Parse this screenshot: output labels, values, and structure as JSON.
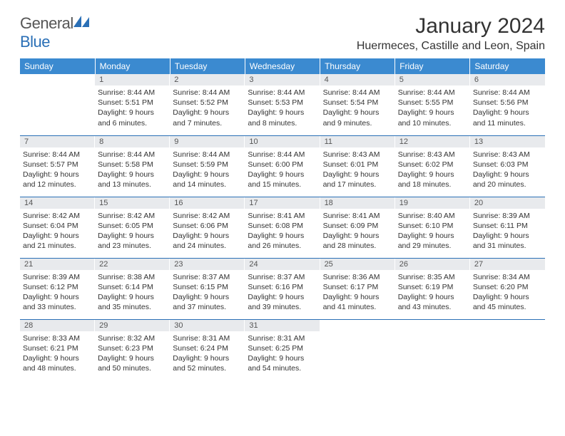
{
  "logo": {
    "text1": "General",
    "text2": "Blue"
  },
  "title": "January 2024",
  "location": "Huermeces, Castille and Leon, Spain",
  "colors": {
    "header_bg": "#3b8ad0",
    "header_text": "#ffffff",
    "daynum_bg": "#e8eaed",
    "rule": "#2a6fb6",
    "logo_accent": "#2a6fb6"
  },
  "weekdays": [
    "Sunday",
    "Monday",
    "Tuesday",
    "Wednesday",
    "Thursday",
    "Friday",
    "Saturday"
  ],
  "weeks": [
    [
      {
        "empty": true
      },
      {
        "n": "1",
        "sr": "8:44 AM",
        "ss": "5:51 PM",
        "dl": "9 hours and 6 minutes."
      },
      {
        "n": "2",
        "sr": "8:44 AM",
        "ss": "5:52 PM",
        "dl": "9 hours and 7 minutes."
      },
      {
        "n": "3",
        "sr": "8:44 AM",
        "ss": "5:53 PM",
        "dl": "9 hours and 8 minutes."
      },
      {
        "n": "4",
        "sr": "8:44 AM",
        "ss": "5:54 PM",
        "dl": "9 hours and 9 minutes."
      },
      {
        "n": "5",
        "sr": "8:44 AM",
        "ss": "5:55 PM",
        "dl": "9 hours and 10 minutes."
      },
      {
        "n": "6",
        "sr": "8:44 AM",
        "ss": "5:56 PM",
        "dl": "9 hours and 11 minutes."
      }
    ],
    [
      {
        "n": "7",
        "sr": "8:44 AM",
        "ss": "5:57 PM",
        "dl": "9 hours and 12 minutes."
      },
      {
        "n": "8",
        "sr": "8:44 AM",
        "ss": "5:58 PM",
        "dl": "9 hours and 13 minutes."
      },
      {
        "n": "9",
        "sr": "8:44 AM",
        "ss": "5:59 PM",
        "dl": "9 hours and 14 minutes."
      },
      {
        "n": "10",
        "sr": "8:44 AM",
        "ss": "6:00 PM",
        "dl": "9 hours and 15 minutes."
      },
      {
        "n": "11",
        "sr": "8:43 AM",
        "ss": "6:01 PM",
        "dl": "9 hours and 17 minutes."
      },
      {
        "n": "12",
        "sr": "8:43 AM",
        "ss": "6:02 PM",
        "dl": "9 hours and 18 minutes."
      },
      {
        "n": "13",
        "sr": "8:43 AM",
        "ss": "6:03 PM",
        "dl": "9 hours and 20 minutes."
      }
    ],
    [
      {
        "n": "14",
        "sr": "8:42 AM",
        "ss": "6:04 PM",
        "dl": "9 hours and 21 minutes."
      },
      {
        "n": "15",
        "sr": "8:42 AM",
        "ss": "6:05 PM",
        "dl": "9 hours and 23 minutes."
      },
      {
        "n": "16",
        "sr": "8:42 AM",
        "ss": "6:06 PM",
        "dl": "9 hours and 24 minutes."
      },
      {
        "n": "17",
        "sr": "8:41 AM",
        "ss": "6:08 PM",
        "dl": "9 hours and 26 minutes."
      },
      {
        "n": "18",
        "sr": "8:41 AM",
        "ss": "6:09 PM",
        "dl": "9 hours and 28 minutes."
      },
      {
        "n": "19",
        "sr": "8:40 AM",
        "ss": "6:10 PM",
        "dl": "9 hours and 29 minutes."
      },
      {
        "n": "20",
        "sr": "8:39 AM",
        "ss": "6:11 PM",
        "dl": "9 hours and 31 minutes."
      }
    ],
    [
      {
        "n": "21",
        "sr": "8:39 AM",
        "ss": "6:12 PM",
        "dl": "9 hours and 33 minutes."
      },
      {
        "n": "22",
        "sr": "8:38 AM",
        "ss": "6:14 PM",
        "dl": "9 hours and 35 minutes."
      },
      {
        "n": "23",
        "sr": "8:37 AM",
        "ss": "6:15 PM",
        "dl": "9 hours and 37 minutes."
      },
      {
        "n": "24",
        "sr": "8:37 AM",
        "ss": "6:16 PM",
        "dl": "9 hours and 39 minutes."
      },
      {
        "n": "25",
        "sr": "8:36 AM",
        "ss": "6:17 PM",
        "dl": "9 hours and 41 minutes."
      },
      {
        "n": "26",
        "sr": "8:35 AM",
        "ss": "6:19 PM",
        "dl": "9 hours and 43 minutes."
      },
      {
        "n": "27",
        "sr": "8:34 AM",
        "ss": "6:20 PM",
        "dl": "9 hours and 45 minutes."
      }
    ],
    [
      {
        "n": "28",
        "sr": "8:33 AM",
        "ss": "6:21 PM",
        "dl": "9 hours and 48 minutes."
      },
      {
        "n": "29",
        "sr": "8:32 AM",
        "ss": "6:23 PM",
        "dl": "9 hours and 50 minutes."
      },
      {
        "n": "30",
        "sr": "8:31 AM",
        "ss": "6:24 PM",
        "dl": "9 hours and 52 minutes."
      },
      {
        "n": "31",
        "sr": "8:31 AM",
        "ss": "6:25 PM",
        "dl": "9 hours and 54 minutes."
      },
      {
        "empty": true
      },
      {
        "empty": true
      },
      {
        "empty": true
      }
    ]
  ],
  "labels": {
    "sunrise": "Sunrise:",
    "sunset": "Sunset:",
    "daylight": "Daylight:"
  }
}
